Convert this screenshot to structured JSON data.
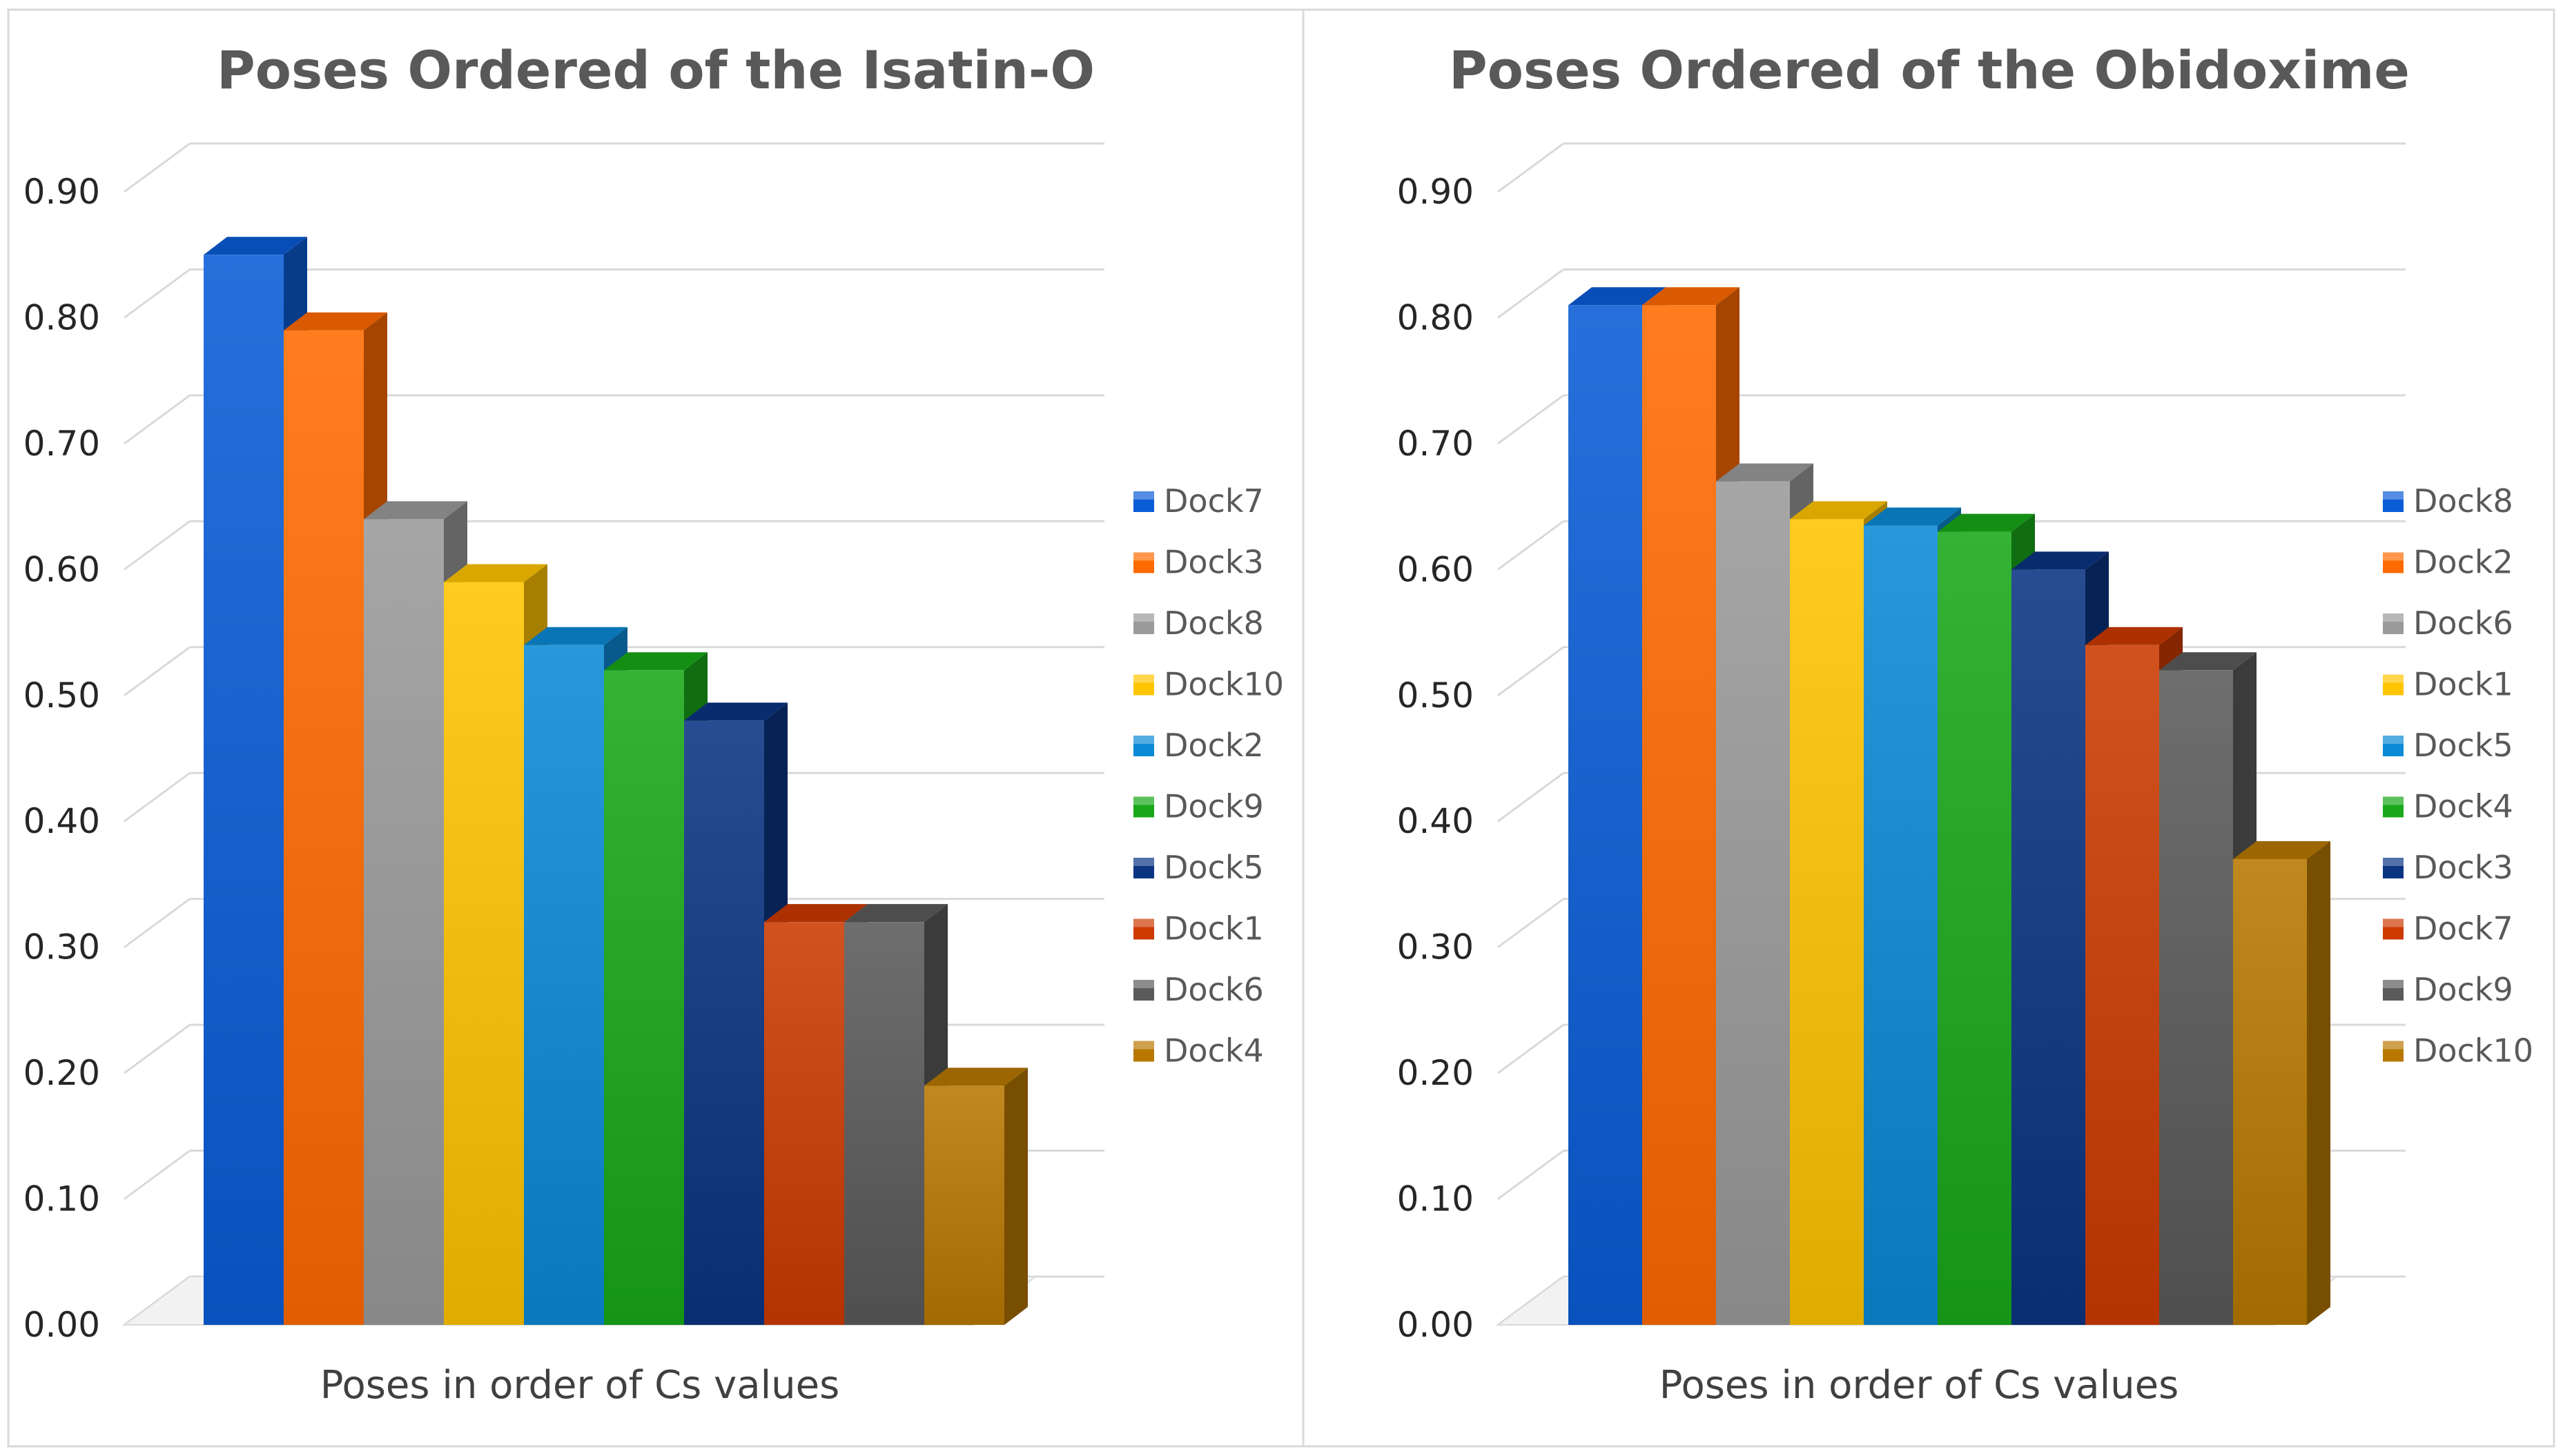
{
  "chart_data": [
    {
      "type": "bar",
      "title": "Poses Ordered of the Isatin-O",
      "xlabel": "Poses in order of Cs values",
      "ylabel": "",
      "ylim": [
        0,
        0.9
      ],
      "yticks": [
        "0.00",
        "0.10",
        "0.20",
        "0.30",
        "0.40",
        "0.50",
        "0.60",
        "0.70",
        "0.80",
        "0.90"
      ],
      "legend_position": "right",
      "series": [
        {
          "name": "Dock7",
          "value": 0.85,
          "color": "#0a5cd6"
        },
        {
          "name": "Dock3",
          "value": 0.79,
          "color": "#ff6a00"
        },
        {
          "name": "Dock8",
          "value": 0.64,
          "color": "#9a9a9a"
        },
        {
          "name": "Dock10",
          "value": 0.59,
          "color": "#ffc400"
        },
        {
          "name": "Dock2",
          "value": 0.54,
          "color": "#0b8ad6"
        },
        {
          "name": "Dock9",
          "value": 0.52,
          "color": "#18a818"
        },
        {
          "name": "Dock5",
          "value": 0.48,
          "color": "#0b3482"
        },
        {
          "name": "Dock1",
          "value": 0.32,
          "color": "#cc3a00"
        },
        {
          "name": "Dock6",
          "value": 0.32,
          "color": "#5a5a5a"
        },
        {
          "name": "Dock4",
          "value": 0.19,
          "color": "#b87800"
        }
      ]
    },
    {
      "type": "bar",
      "title": "Poses Ordered of the Obidoxime",
      "xlabel": "Poses in order of Cs values",
      "ylabel": "",
      "ylim": [
        0,
        0.9
      ],
      "yticks": [
        "0.00",
        "0.10",
        "0.20",
        "0.30",
        "0.40",
        "0.50",
        "0.60",
        "0.70",
        "0.80",
        "0.90"
      ],
      "legend_position": "right",
      "series": [
        {
          "name": "Dock8",
          "value": 0.81,
          "color": "#0a5cd6"
        },
        {
          "name": "Dock2",
          "value": 0.81,
          "color": "#ff6a00"
        },
        {
          "name": "Dock6",
          "value": 0.67,
          "color": "#9a9a9a"
        },
        {
          "name": "Dock1",
          "value": 0.64,
          "color": "#ffc400"
        },
        {
          "name": "Dock5",
          "value": 0.635,
          "color": "#0b8ad6"
        },
        {
          "name": "Dock4",
          "value": 0.63,
          "color": "#18a818"
        },
        {
          "name": "Dock3",
          "value": 0.6,
          "color": "#0b3482"
        },
        {
          "name": "Dock7",
          "value": 0.54,
          "color": "#cc3a00"
        },
        {
          "name": "Dock9",
          "value": 0.52,
          "color": "#5a5a5a"
        },
        {
          "name": "Dock10",
          "value": 0.37,
          "color": "#b87800"
        }
      ]
    }
  ]
}
